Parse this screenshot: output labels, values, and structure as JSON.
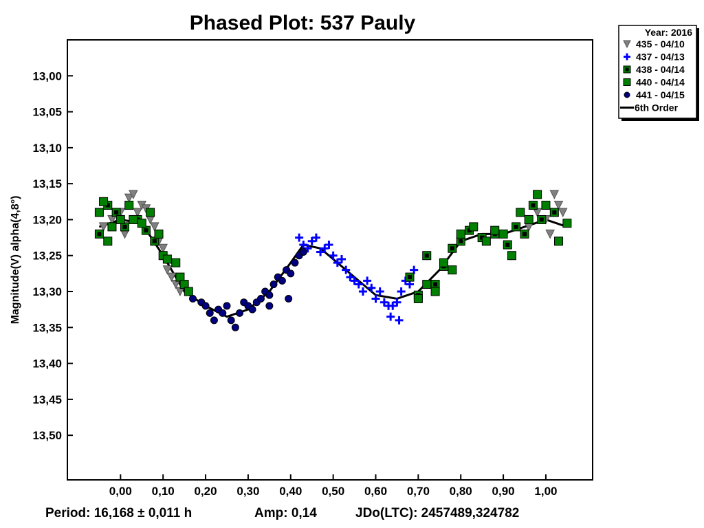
{
  "chart_data": {
    "type": "scatter",
    "title": "Phased Plot: 537 Pauly",
    "xlabel": "",
    "ylabel": "Magnitude(V) alpha(4,8°)",
    "xlim": [
      -0.125,
      1.11
    ],
    "ylim": [
      12.95,
      13.562
    ],
    "y_inverted": true,
    "grid": false,
    "x_ticks": [
      0.0,
      0.1,
      0.2,
      0.3,
      0.4,
      0.5,
      0.6,
      0.7,
      0.8,
      0.9,
      1.0
    ],
    "x_tick_labels": [
      "0,00",
      "0,10",
      "0,20",
      "0,30",
      "0,40",
      "0,50",
      "0,60",
      "0,70",
      "0,80",
      "0,90",
      "1,00"
    ],
    "y_ticks": [
      13.0,
      13.05,
      13.1,
      13.15,
      13.2,
      13.25,
      13.3,
      13.35,
      13.4,
      13.45,
      13.5
    ],
    "y_tick_labels": [
      "13,00",
      "13,05",
      "13,10",
      "13,15",
      "13,20",
      "13,25",
      "13,30",
      "13,35",
      "13,40",
      "13,45",
      "13,50"
    ],
    "legend": {
      "placement": "top-right outside",
      "header": "Year: 2016",
      "entries": [
        "435 - 04/10",
        "437 - 04/13",
        "438 - 04/14",
        "440 - 04/14",
        "441 - 04/15",
        "6th Order"
      ]
    },
    "footer": {
      "period": "Period: 16,168 ± 0,011 h",
      "amp": "Amp: 0,14",
      "jdo": "JDo(LTC): 2457489,324782"
    },
    "series": [
      {
        "name": "435 - 04/10",
        "marker": "triangle-down",
        "color": "#808080",
        "points": [
          [
            -0.04,
            13.21
          ],
          [
            -0.02,
            13.2
          ],
          [
            0.0,
            13.19
          ],
          [
            0.01,
            13.22
          ],
          [
            0.02,
            13.17
          ],
          [
            0.03,
            13.165
          ],
          [
            0.04,
            13.19
          ],
          [
            0.05,
            13.18
          ],
          [
            0.06,
            13.185
          ],
          [
            0.07,
            13.2
          ],
          [
            0.08,
            13.21
          ],
          [
            0.09,
            13.23
          ],
          [
            0.1,
            13.24
          ],
          [
            0.11,
            13.27
          ],
          [
            0.12,
            13.28
          ],
          [
            0.13,
            13.29
          ],
          [
            0.14,
            13.3
          ],
          [
            0.96,
            13.21
          ],
          [
            0.98,
            13.19
          ],
          [
            1.0,
            13.2
          ],
          [
            1.01,
            13.22
          ],
          [
            1.02,
            13.165
          ],
          [
            1.03,
            13.18
          ],
          [
            1.04,
            13.19
          ]
        ]
      },
      {
        "name": "437 - 04/13",
        "marker": "plus",
        "color": "#0000ff",
        "points": [
          [
            0.42,
            13.225
          ],
          [
            0.43,
            13.235
          ],
          [
            0.44,
            13.24
          ],
          [
            0.45,
            13.23
          ],
          [
            0.46,
            13.225
          ],
          [
            0.47,
            13.245
          ],
          [
            0.48,
            13.24
          ],
          [
            0.49,
            13.235
          ],
          [
            0.5,
            13.25
          ],
          [
            0.51,
            13.26
          ],
          [
            0.52,
            13.255
          ],
          [
            0.53,
            13.27
          ],
          [
            0.54,
            13.28
          ],
          [
            0.55,
            13.285
          ],
          [
            0.56,
            13.29
          ],
          [
            0.57,
            13.3
          ],
          [
            0.58,
            13.285
          ],
          [
            0.59,
            13.295
          ],
          [
            0.6,
            13.31
          ],
          [
            0.61,
            13.3
          ],
          [
            0.62,
            13.315
          ],
          [
            0.63,
            13.32
          ],
          [
            0.635,
            13.335
          ],
          [
            0.64,
            13.32
          ],
          [
            0.65,
            13.315
          ],
          [
            0.655,
            13.34
          ],
          [
            0.66,
            13.3
          ],
          [
            0.67,
            13.285
          ],
          [
            0.68,
            13.29
          ],
          [
            0.69,
            13.27
          ]
        ]
      },
      {
        "name": "438 - 04/14",
        "marker": "square-dot",
        "color": "#008000",
        "points": [
          [
            -0.05,
            13.22
          ],
          [
            -0.03,
            13.18
          ],
          [
            -0.01,
            13.19
          ],
          [
            0.01,
            13.21
          ],
          [
            0.04,
            13.2
          ],
          [
            0.06,
            13.215
          ],
          [
            0.08,
            13.23
          ],
          [
            0.68,
            13.28
          ],
          [
            0.7,
            13.305
          ],
          [
            0.72,
            13.25
          ],
          [
            0.74,
            13.29
          ],
          [
            0.76,
            13.265
          ],
          [
            0.78,
            13.24
          ],
          [
            0.8,
            13.23
          ],
          [
            0.82,
            13.215
          ],
          [
            0.85,
            13.225
          ],
          [
            0.88,
            13.22
          ],
          [
            0.91,
            13.235
          ],
          [
            0.93,
            13.21
          ],
          [
            0.95,
            13.22
          ],
          [
            0.97,
            13.18
          ],
          [
            0.99,
            13.2
          ],
          [
            1.02,
            13.19
          ]
        ]
      },
      {
        "name": "440 - 04/14",
        "marker": "square",
        "color": "#008000",
        "points": [
          [
            -0.05,
            13.19
          ],
          [
            -0.04,
            13.175
          ],
          [
            -0.03,
            13.23
          ],
          [
            -0.02,
            13.21
          ],
          [
            0.0,
            13.2
          ],
          [
            0.02,
            13.18
          ],
          [
            0.03,
            13.2
          ],
          [
            0.05,
            13.205
          ],
          [
            0.07,
            13.19
          ],
          [
            0.09,
            13.22
          ],
          [
            0.1,
            13.25
          ],
          [
            0.11,
            13.255
          ],
          [
            0.13,
            13.26
          ],
          [
            0.14,
            13.28
          ],
          [
            0.15,
            13.29
          ],
          [
            0.16,
            13.3
          ],
          [
            0.7,
            13.31
          ],
          [
            0.72,
            13.29
          ],
          [
            0.74,
            13.3
          ],
          [
            0.76,
            13.26
          ],
          [
            0.78,
            13.27
          ],
          [
            0.8,
            13.22
          ],
          [
            0.83,
            13.21
          ],
          [
            0.86,
            13.23
          ],
          [
            0.88,
            13.215
          ],
          [
            0.9,
            13.22
          ],
          [
            0.92,
            13.25
          ],
          [
            0.94,
            13.19
          ],
          [
            0.96,
            13.2
          ],
          [
            0.98,
            13.165
          ],
          [
            1.0,
            13.18
          ],
          [
            1.03,
            13.23
          ],
          [
            1.05,
            13.205
          ]
        ]
      },
      {
        "name": "441 - 04/15",
        "marker": "circle",
        "color": "#000080",
        "points": [
          [
            0.17,
            13.31
          ],
          [
            0.19,
            13.315
          ],
          [
            0.2,
            13.32
          ],
          [
            0.21,
            13.33
          ],
          [
            0.22,
            13.34
          ],
          [
            0.23,
            13.325
          ],
          [
            0.24,
            13.33
          ],
          [
            0.25,
            13.32
          ],
          [
            0.26,
            13.34
          ],
          [
            0.27,
            13.35
          ],
          [
            0.28,
            13.33
          ],
          [
            0.29,
            13.315
          ],
          [
            0.3,
            13.32
          ],
          [
            0.31,
            13.325
          ],
          [
            0.32,
            13.315
          ],
          [
            0.33,
            13.31
          ],
          [
            0.34,
            13.3
          ],
          [
            0.35,
            13.305
          ],
          [
            0.35,
            13.32
          ],
          [
            0.36,
            13.29
          ],
          [
            0.37,
            13.28
          ],
          [
            0.38,
            13.285
          ],
          [
            0.39,
            13.27
          ],
          [
            0.395,
            13.31
          ],
          [
            0.4,
            13.275
          ],
          [
            0.41,
            13.26
          ],
          [
            0.42,
            13.25
          ],
          [
            0.43,
            13.245
          ]
        ]
      }
    ],
    "fit": {
      "name": "6th Order",
      "color": "#000000",
      "points": [
        [
          -0.05,
          13.21
        ],
        [
          0.0,
          13.2
        ],
        [
          0.05,
          13.205
        ],
        [
          0.1,
          13.25
        ],
        [
          0.15,
          13.3
        ],
        [
          0.2,
          13.32
        ],
        [
          0.25,
          13.335
        ],
        [
          0.3,
          13.325
        ],
        [
          0.35,
          13.3
        ],
        [
          0.4,
          13.26
        ],
        [
          0.43,
          13.235
        ],
        [
          0.47,
          13.24
        ],
        [
          0.5,
          13.255
        ],
        [
          0.55,
          13.28
        ],
        [
          0.6,
          13.305
        ],
        [
          0.65,
          13.31
        ],
        [
          0.7,
          13.3
        ],
        [
          0.75,
          13.27
        ],
        [
          0.8,
          13.23
        ],
        [
          0.85,
          13.22
        ],
        [
          0.9,
          13.22
        ],
        [
          0.95,
          13.21
        ],
        [
          1.0,
          13.2
        ],
        [
          1.05,
          13.21
        ]
      ]
    }
  }
}
